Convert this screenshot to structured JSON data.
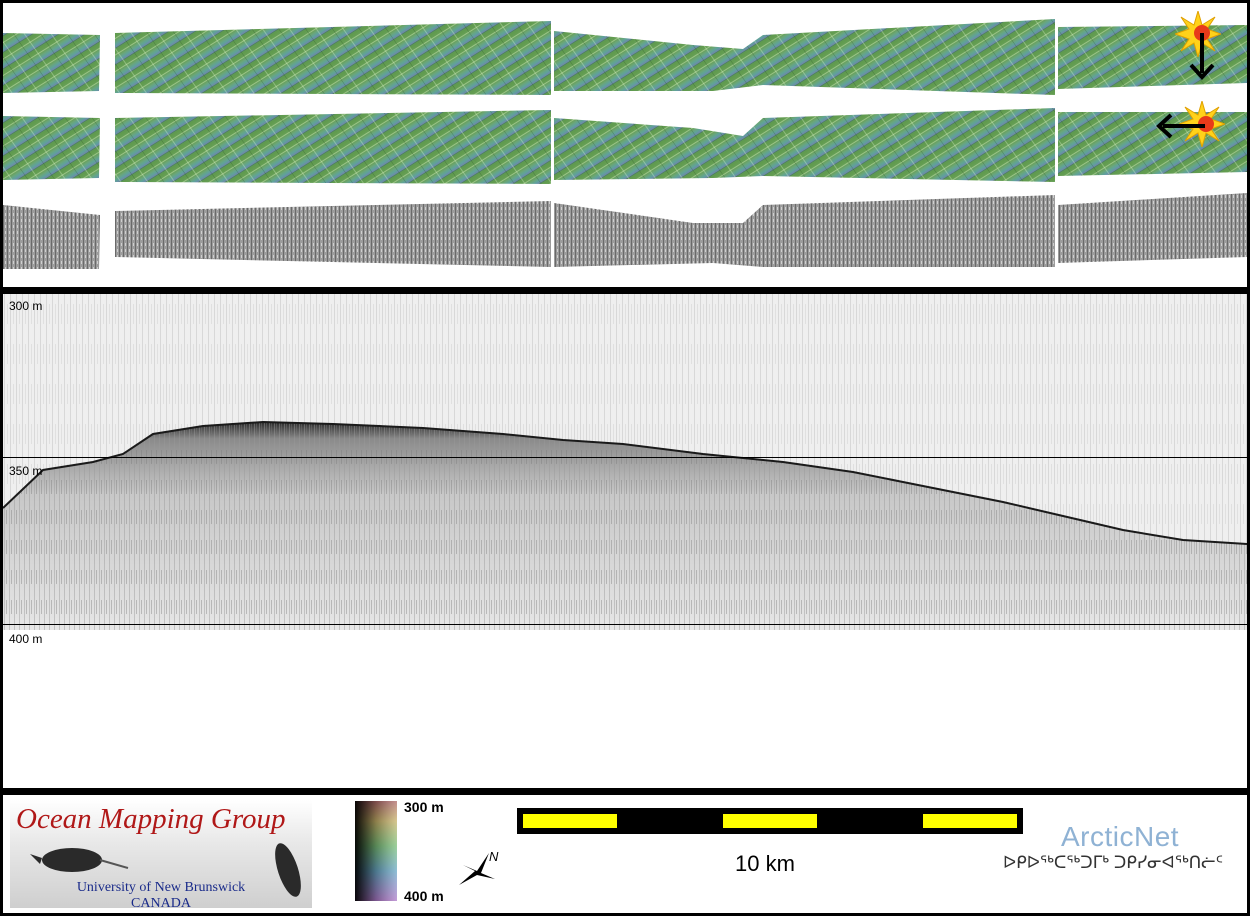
{
  "profile": {
    "depth_labels": [
      "300 m",
      "350 m",
      "400 m"
    ]
  },
  "footer": {
    "logo_title": "Ocean Mapping Group",
    "logo_university": "University of New Brunswick",
    "logo_country": "CANADA",
    "colorbar_top": "300 m",
    "colorbar_bottom": "400 m",
    "north_label": "N",
    "scale_label": "10 km",
    "arcticnet_name": "ArcticNet",
    "arcticnet_syllabics": "ᐅᑭᐅᖅᑕᖅᑐᒥᒃ ᑐᑭᓯᓂᐊᖅᑎᓖᑦ"
  },
  "colors": {
    "bathy_green": "#5f9a4c",
    "bathy_teal": "#5fa39a",
    "bathy_blue": "#6f8ab0",
    "sun_yellow": "#ffd21a",
    "scale_yellow": "#ffff00",
    "logo_red": "#b01818",
    "logo_blue": "#1a2b8a",
    "arcticnet_blue": "#8fb2d4"
  }
}
